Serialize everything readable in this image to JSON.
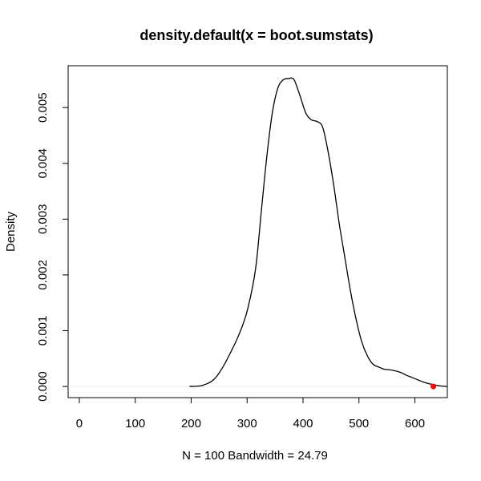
{
  "chart_data": {
    "type": "line",
    "title": "density.default(x = boot.sumstats)",
    "xlabel": "N = 100   Bandwidth = 24.79",
    "ylabel": "Density",
    "xlim": [
      -20,
      658
    ],
    "ylim": [
      -0.0002,
      0.00575
    ],
    "x_ticks": [
      0,
      100,
      200,
      300,
      400,
      500,
      600
    ],
    "x_tick_labels": [
      "0",
      "100",
      "200",
      "300",
      "400",
      "500",
      "600"
    ],
    "y_ticks": [
      0,
      0.001,
      0.002,
      0.003,
      0.004,
      0.005
    ],
    "y_tick_labels": [
      "0.000",
      "0.001",
      "0.002",
      "0.003",
      "0.004",
      "0.005"
    ],
    "grid": false,
    "legend": "none",
    "baseline": {
      "y": 0,
      "color": "#eeeeee"
    },
    "series": [
      {
        "color": "#000000",
        "x": [
          197,
          220,
          240,
          255,
          270,
          285,
          300,
          315,
          325,
          335,
          345,
          355,
          365,
          375,
          380,
          385,
          395,
          405,
          415,
          425,
          435,
          445,
          455,
          465,
          475,
          485,
          495,
          505,
          515,
          525,
          535,
          545,
          555,
          565,
          575,
          585,
          595,
          605,
          615,
          625,
          635,
          645,
          658
        ],
        "y": [
          0.0,
          2e-05,
          0.00012,
          0.00032,
          0.0006,
          0.00092,
          0.00135,
          0.0021,
          0.0031,
          0.0041,
          0.0049,
          0.00535,
          0.0055,
          0.00552,
          0.00553,
          0.00548,
          0.0052,
          0.0049,
          0.00478,
          0.00475,
          0.00465,
          0.0042,
          0.0036,
          0.0029,
          0.0023,
          0.0017,
          0.0012,
          0.0008,
          0.00055,
          0.0004,
          0.00035,
          0.00031,
          0.0003,
          0.00028,
          0.00025,
          0.0002,
          0.00016,
          0.00012,
          8e-05,
          5e-05,
          3e-05,
          1e-05,
          0.0
        ]
      }
    ],
    "marker": {
      "x": 633,
      "y": 0,
      "color": "#ff0000"
    }
  }
}
